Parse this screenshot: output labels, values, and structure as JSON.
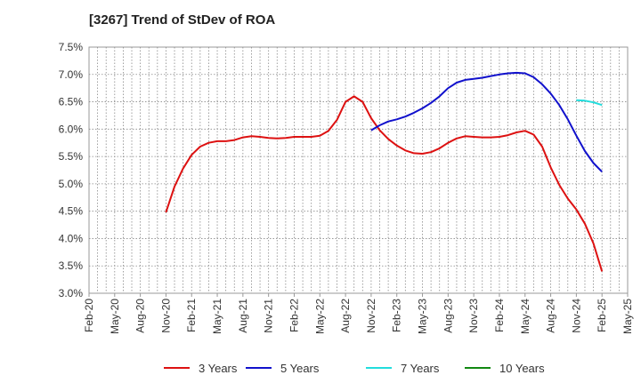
{
  "chart_data": {
    "type": "line",
    "title": "[3267]  Trend of StDev of ROA",
    "xlabel": "",
    "ylabel": "",
    "ylim": [
      3.0,
      7.5
    ],
    "y_ticks": [
      "3.0%",
      "3.5%",
      "4.0%",
      "4.5%",
      "5.0%",
      "5.5%",
      "6.0%",
      "6.5%",
      "7.0%",
      "7.5%"
    ],
    "x_ticks": [
      "Feb-20",
      "May-20",
      "Aug-20",
      "Nov-20",
      "Feb-21",
      "May-21",
      "Aug-21",
      "Nov-21",
      "Feb-22",
      "May-22",
      "Aug-22",
      "Nov-22",
      "Feb-23",
      "May-23",
      "Aug-23",
      "Nov-23",
      "Feb-24",
      "May-24",
      "Aug-24",
      "Nov-24",
      "Feb-25",
      "May-25"
    ],
    "grid": true,
    "legend_position": "bottom",
    "series": [
      {
        "name": "3 Years",
        "color": "#dd1111",
        "points": [
          [
            "Nov-20",
            4.48
          ],
          [
            "Dec-20",
            4.95
          ],
          [
            "Jan-21",
            5.28
          ],
          [
            "Feb-21",
            5.53
          ],
          [
            "Mar-21",
            5.68
          ],
          [
            "Apr-21",
            5.75
          ],
          [
            "May-21",
            5.78
          ],
          [
            "Jun-21",
            5.78
          ],
          [
            "Jul-21",
            5.8
          ],
          [
            "Aug-21",
            5.85
          ],
          [
            "Sep-21",
            5.87
          ],
          [
            "Oct-21",
            5.86
          ],
          [
            "Nov-21",
            5.84
          ],
          [
            "Dec-21",
            5.83
          ],
          [
            "Jan-22",
            5.84
          ],
          [
            "Feb-22",
            5.86
          ],
          [
            "Mar-22",
            5.86
          ],
          [
            "Apr-22",
            5.86
          ],
          [
            "May-22",
            5.88
          ],
          [
            "Jun-22",
            5.97
          ],
          [
            "Jul-22",
            6.17
          ],
          [
            "Aug-22",
            6.5
          ],
          [
            "Sep-22",
            6.6
          ],
          [
            "Oct-22",
            6.5
          ],
          [
            "Nov-22",
            6.2
          ],
          [
            "Dec-22",
            5.98
          ],
          [
            "Jan-23",
            5.82
          ],
          [
            "Feb-23",
            5.7
          ],
          [
            "Mar-23",
            5.61
          ],
          [
            "Apr-23",
            5.56
          ],
          [
            "May-23",
            5.55
          ],
          [
            "Jun-23",
            5.58
          ],
          [
            "Jul-23",
            5.65
          ],
          [
            "Aug-23",
            5.75
          ],
          [
            "Sep-23",
            5.83
          ],
          [
            "Oct-23",
            5.87
          ],
          [
            "Nov-23",
            5.86
          ],
          [
            "Dec-23",
            5.85
          ],
          [
            "Jan-24",
            5.85
          ],
          [
            "Feb-24",
            5.86
          ],
          [
            "Mar-24",
            5.89
          ],
          [
            "Apr-24",
            5.94
          ],
          [
            "May-24",
            5.97
          ],
          [
            "Jun-24",
            5.9
          ],
          [
            "Jul-24",
            5.68
          ],
          [
            "Aug-24",
            5.3
          ],
          [
            "Sep-24",
            4.98
          ],
          [
            "Oct-24",
            4.73
          ],
          [
            "Nov-24",
            4.53
          ],
          [
            "Dec-24",
            4.27
          ],
          [
            "Jan-25",
            3.91
          ],
          [
            "Feb-25",
            3.4
          ]
        ]
      },
      {
        "name": "5 Years",
        "color": "#1111cc",
        "points": [
          [
            "Nov-22",
            5.98
          ],
          [
            "Dec-22",
            6.07
          ],
          [
            "Jan-23",
            6.14
          ],
          [
            "Feb-23",
            6.18
          ],
          [
            "Mar-23",
            6.23
          ],
          [
            "Apr-23",
            6.3
          ],
          [
            "May-23",
            6.38
          ],
          [
            "Jun-23",
            6.48
          ],
          [
            "Jul-23",
            6.6
          ],
          [
            "Aug-23",
            6.75
          ],
          [
            "Sep-23",
            6.85
          ],
          [
            "Oct-23",
            6.9
          ],
          [
            "Nov-23",
            6.92
          ],
          [
            "Dec-23",
            6.94
          ],
          [
            "Jan-24",
            6.97
          ],
          [
            "Feb-24",
            7.0
          ],
          [
            "Mar-24",
            7.02
          ],
          [
            "Apr-24",
            7.03
          ],
          [
            "May-24",
            7.02
          ],
          [
            "Jun-24",
            6.95
          ],
          [
            "Jul-24",
            6.82
          ],
          [
            "Aug-24",
            6.65
          ],
          [
            "Sep-24",
            6.44
          ],
          [
            "Oct-24",
            6.18
          ],
          [
            "Nov-24",
            5.88
          ],
          [
            "Dec-24",
            5.6
          ],
          [
            "Jan-25",
            5.38
          ],
          [
            "Feb-25",
            5.22
          ]
        ]
      },
      {
        "name": "7 Years",
        "color": "#22dddd",
        "points": [
          [
            "Nov-24",
            6.53
          ],
          [
            "Dec-24",
            6.52
          ],
          [
            "Jan-25",
            6.49
          ],
          [
            "Feb-25",
            6.44
          ]
        ]
      },
      {
        "name": "10 Years",
        "color": "#118811",
        "points": []
      }
    ]
  }
}
